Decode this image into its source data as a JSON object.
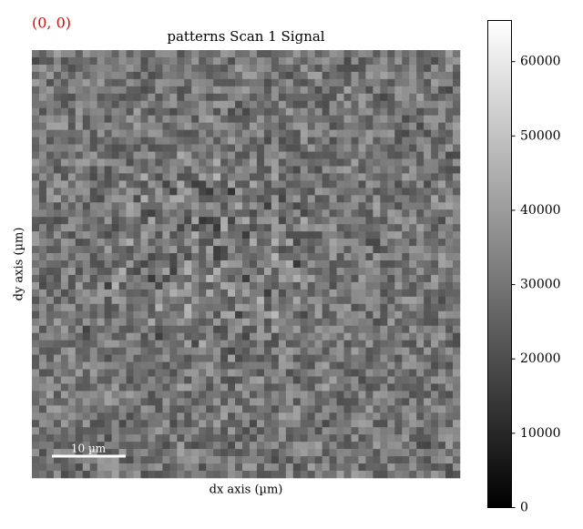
{
  "chart_data": {
    "type": "image",
    "title": "patterns Scan 1 Signal",
    "position_label": "(0, 0)",
    "xlabel": "dx axis (µm)",
    "ylabel": "dy axis (µm)",
    "scalebar_label": "10 µm",
    "colormap": "gray",
    "clim": [
      0,
      65535
    ],
    "cticks": [
      0,
      10000,
      20000,
      30000,
      40000,
      50000,
      60000
    ]
  }
}
